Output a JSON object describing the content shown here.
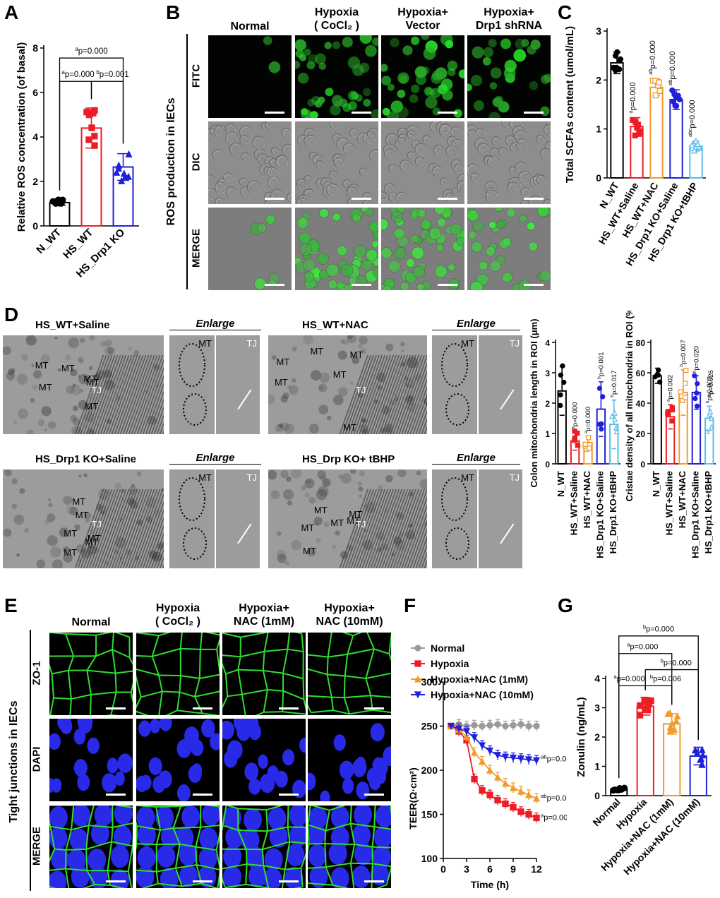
{
  "panels": {
    "A": "A",
    "B": "B",
    "C": "C",
    "D": "D",
    "E": "E",
    "F": "F",
    "G": "G"
  },
  "colors": {
    "black": "#000000",
    "red": "#ee1c25",
    "blue": "#2020d8",
    "orange": "#f39a2e",
    "lightblue": "#5bbde8",
    "gray": "#9a9a9a"
  },
  "panel_B": {
    "columns": [
      "Normal",
      "Hypoxia\n( CoCl₂ )",
      "Hypoxia+\nVector",
      "Hypoxia+\nDrp1 shRNA"
    ],
    "rows": [
      "FITC",
      "DIC",
      "MERGE"
    ],
    "side_label": "ROS production in IECs"
  },
  "panel_D": {
    "titles": [
      "HS_WT+Saline",
      "HS_WT+NAC",
      "HS_Drp1 KO+Saline",
      "HS_Drp KO+ tBHP"
    ],
    "enlarge": "Enlarge",
    "mt": "MT",
    "tj": "TJ"
  },
  "panel_E": {
    "columns": [
      "Normal",
      "Hypoxia\n( CoCl₂ )",
      "Hypoxia+\nNAC  (1mM)",
      "Hypoxia+\nNAC (10mM)"
    ],
    "rows": [
      "ZO-1",
      "DAPI",
      "MERGE"
    ],
    "side_label": "Tight junctions in IECs"
  },
  "chart_data": [
    {
      "id": "A",
      "type": "bar",
      "categories": [
        "N_WT",
        "HS_WT",
        "HS_Drp1 KO"
      ],
      "values": [
        1.05,
        4.4,
        2.65
      ],
      "errors": [
        0.12,
        0.9,
        0.6
      ],
      "colors": [
        "#000000",
        "#ee1c25",
        "#2020d8"
      ],
      "ylabel": "Relative ROS concentration (of basal)",
      "ylim": [
        0,
        8
      ],
      "yticks": [
        0,
        2,
        4,
        6,
        8
      ],
      "annotations": [
        "ap=0.000",
        "ap=0.000",
        "bp=0.001"
      ]
    },
    {
      "id": "C",
      "type": "bar",
      "categories": [
        "N_WT",
        "HS_WT+Saline",
        "HS_WT+NAC",
        "HS_Drp1 KO+Saline",
        "HS_Drp1 KO+tBHP"
      ],
      "values": [
        2.35,
        1.05,
        1.85,
        1.6,
        0.65
      ],
      "errors": [
        0.22,
        0.18,
        0.17,
        0.2,
        0.1
      ],
      "colors": [
        "#000000",
        "#ee1c25",
        "#f39a2e",
        "#2020d8",
        "#5bbde8"
      ],
      "ylabel": "Total SCFAs content (umol/mL)",
      "ylim": [
        0,
        3
      ],
      "yticks": [
        0,
        1,
        2,
        3
      ],
      "annotations": [
        "ap=0.000",
        "abp=0.000",
        "abp=0.000",
        "abcp=0.000"
      ]
    },
    {
      "id": "D1",
      "type": "bar",
      "categories": [
        "N_WT",
        "HS_WT+Saline",
        "HS_WT+NAC",
        "HS_Drp1 KO+Saline",
        "HS_Drp1 KO+tBHP"
      ],
      "values": [
        2.4,
        0.75,
        0.7,
        1.8,
        1.3
      ],
      "errors": [
        0.8,
        0.3,
        0.2,
        0.9,
        0.8
      ],
      "colors": [
        "#000000",
        "#ee1c25",
        "#f39a2e",
        "#2020d8",
        "#5bbde8"
      ],
      "ylabel": "Colon mitochondria length in ROI (μm)",
      "ylim": [
        0,
        4
      ],
      "yticks": [
        0,
        1,
        2,
        3,
        4
      ],
      "annotations": [
        "ap=0.000",
        "ap=0.000",
        "bp=0.001",
        "bp=0.017"
      ]
    },
    {
      "id": "D2",
      "type": "bar",
      "categories": [
        "N_WT",
        "HS_WT+Saline",
        "HS_WT+NAC",
        "HS_Drp1 KO+Saline",
        "HS_Drp1 KO+tBHP"
      ],
      "values": [
        58,
        31,
        47,
        47,
        30
      ],
      "errors": [
        5,
        8,
        15,
        11,
        8
      ],
      "colors": [
        "#000000",
        "#ee1c25",
        "#f39a2e",
        "#2020d8",
        "#5bbde8"
      ],
      "ylabel": "Cristae density of all mitochondria in ROI (%)",
      "ylim": [
        0,
        80
      ],
      "yticks": [
        0,
        20,
        40,
        60,
        80
      ],
      "annotations": [
        "ap=0.002",
        "bp=0.007",
        "bp=0.020",
        "ap=0.026",
        "bp=0.003"
      ]
    },
    {
      "id": "F",
      "type": "line",
      "x": [
        1,
        2,
        3,
        4,
        5,
        6,
        7,
        8,
        9,
        10,
        11,
        12
      ],
      "series": [
        {
          "name": "Normal",
          "color": "#9a9a9a",
          "marker": "circle",
          "values": [
            250,
            252,
            250,
            251,
            250,
            251,
            252,
            250,
            251,
            252,
            250,
            250
          ]
        },
        {
          "name": "Hypoxia",
          "color": "#ee1c25",
          "marker": "square",
          "values": [
            250,
            244,
            234,
            190,
            177,
            172,
            166,
            162,
            158,
            153,
            150,
            146
          ]
        },
        {
          "name": "Hypoxia+NAC (1mM)",
          "color": "#f39a2e",
          "marker": "triangle-up",
          "values": [
            250,
            246,
            238,
            220,
            210,
            200,
            192,
            185,
            180,
            176,
            172,
            168
          ]
        },
        {
          "name": "Hypoxia+NAC (10mM)",
          "color": "#2020d8",
          "marker": "triangle-down",
          "values": [
            250,
            247,
            244,
            237,
            228,
            222,
            217,
            215,
            214,
            213,
            212,
            211
          ]
        }
      ],
      "xlabel": "Time (h)",
      "ylabel": "TEER(Ω·cm²)",
      "xlim": [
        0,
        12
      ],
      "ylim": [
        100,
        300
      ],
      "xticks": [
        0,
        3,
        6,
        9,
        12
      ],
      "yticks": [
        100,
        150,
        200,
        250,
        300
      ],
      "annotations": [
        "abp=0.000",
        "abp=0.000",
        "ap=0.000"
      ]
    },
    {
      "id": "G",
      "type": "bar",
      "categories": [
        "Normal",
        "Hypoxia",
        "Hypoxia+NAC (1mM)",
        "Hypoxia+NAC (10mM)"
      ],
      "values": [
        0.22,
        3.05,
        2.45,
        1.35
      ],
      "errors": [
        0.05,
        0.3,
        0.35,
        0.3
      ],
      "colors": [
        "#000000",
        "#ee1c25",
        "#f39a2e",
        "#2020d8"
      ],
      "ylabel": "Zonulin (ng/mL)",
      "ylim": [
        0,
        4
      ],
      "yticks": [
        0,
        1,
        2,
        3,
        4
      ],
      "annotations": [
        "bp=0.000",
        "ap=0.000",
        "bp=0.000",
        "ap=0.000",
        "bp=0.006"
      ]
    }
  ]
}
